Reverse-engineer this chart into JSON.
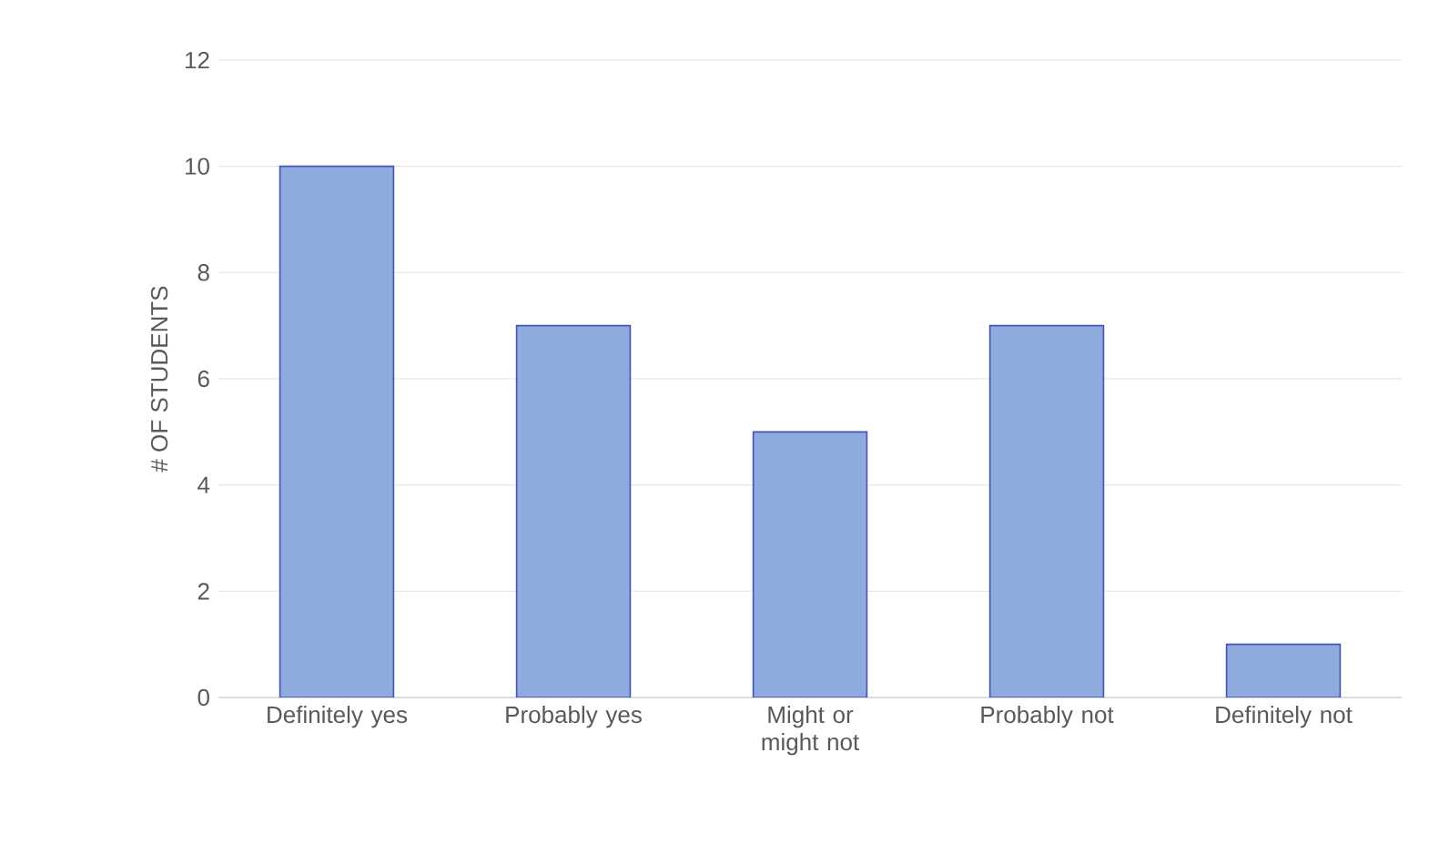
{
  "chart_data": {
    "type": "bar",
    "ylabel": "# OF STUDENTS",
    "categories": [
      "Definitely yes",
      "Probably yes",
      "Might or might not",
      "Probably not",
      "Definitely not"
    ],
    "values": [
      10,
      7,
      5,
      7,
      1
    ],
    "color": "#8faadc",
    "ylim": [
      0,
      12
    ],
    "yticks": [
      0,
      2,
      4,
      6,
      8,
      10,
      12
    ],
    "grid": "y"
  }
}
